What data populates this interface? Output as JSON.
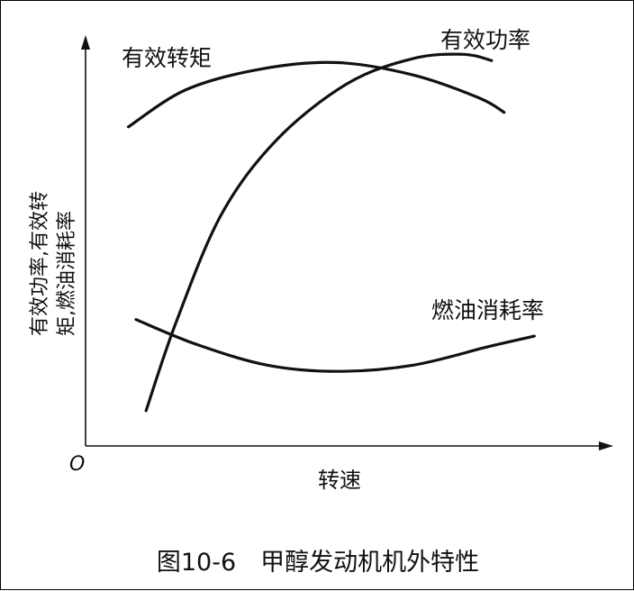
{
  "chart_data": {
    "type": "line",
    "caption": "图10-6　甲醇发动机机外特性",
    "xlabel": "转速",
    "ylabel_lines": [
      "有效功率,有效转",
      "矩,燃油消耗率"
    ],
    "origin_label": "O",
    "axis_ranges": {
      "x": [
        0,
        10
      ],
      "y": [
        0,
        10
      ]
    },
    "grid": false,
    "series": [
      {
        "name": "有效转矩",
        "x": [
          0.85,
          2.0,
          3.5,
          5.0,
          6.5,
          7.8,
          8.3
        ],
        "y": [
          7.7,
          8.6,
          9.1,
          9.25,
          8.95,
          8.4,
          8.05
        ]
      },
      {
        "name": "有效功率",
        "x": [
          1.2,
          1.8,
          2.7,
          3.8,
          5.2,
          6.5,
          7.5,
          8.05
        ],
        "y": [
          0.85,
          3.0,
          5.6,
          7.4,
          8.75,
          9.35,
          9.45,
          9.3
        ]
      },
      {
        "name": "燃油消耗率",
        "x": [
          1.0,
          2.2,
          3.6,
          5.0,
          6.5,
          8.0,
          8.9
        ],
        "y": [
          3.05,
          2.45,
          1.95,
          1.8,
          1.95,
          2.4,
          2.65
        ]
      }
    ]
  }
}
